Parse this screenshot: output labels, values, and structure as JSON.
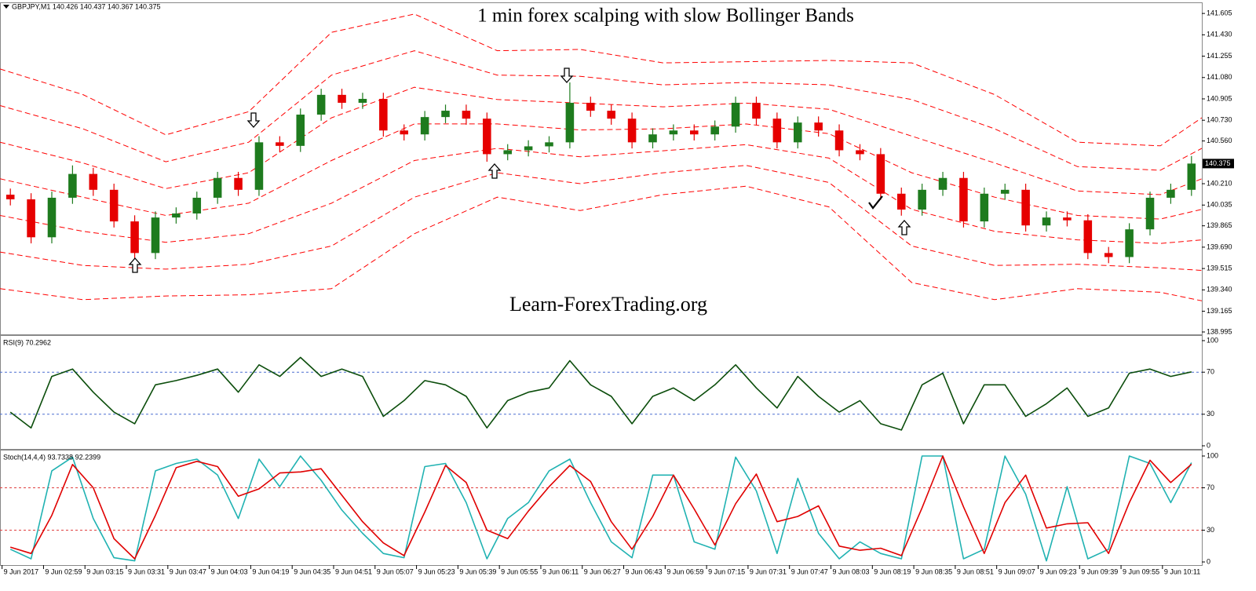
{
  "chart_data": [
    {
      "type": "candlestick",
      "title": "1 min forex scalping with slow Bollinger Bands",
      "watermark": "Learn-ForexTrading.org",
      "header": "GBPJPY,M1 140.426 140.437 140.367 140.375",
      "xlim": [
        0,
        58
      ],
      "ylim": [
        138.982,
        141.683
      ],
      "yticks": [
        141.605,
        {
          "value": 141.43,
          "label": "141.430"
        },
        141.255,
        {
          "value": 141.08,
          "label": "141.080"
        },
        140.905,
        {
          "value": 140.73,
          "label": "140.730"
        },
        {
          "value": 140.56,
          "label": "140.560"
        },
        {
          "value": 140.21,
          "label": "140.210"
        },
        140.035,
        139.865,
        {
          "value": 139.69,
          "label": "139.690"
        },
        139.515,
        {
          "value": 139.34,
          "label": "139.340"
        },
        139.165,
        138.995
      ],
      "last_price": 140.375,
      "up_color": "#1e7b1e",
      "down_color": "#e60000",
      "open": [
        140.12,
        140.082,
        139.771,
        140.095,
        140.29,
        140.16,
        139.901,
        139.642,
        139.933,
        139.966,
        140.095,
        140.257,
        140.16,
        140.549,
        140.52,
        140.776,
        140.938,
        140.873,
        140.905,
        140.646,
        140.614,
        140.756,
        140.808,
        140.743,
        140.452,
        140.484,
        140.516,
        140.549,
        140.873,
        140.808,
        140.743,
        140.549,
        140.614,
        140.646,
        140.614,
        140.678,
        140.873,
        140.743,
        140.549,
        140.711,
        140.646,
        140.484,
        140.452,
        140.128,
        139.998,
        140.16,
        140.257,
        139.901,
        140.128,
        140.16,
        139.868,
        139.933,
        139.91,
        139.642,
        139.609,
        139.836,
        140.095,
        140.16
      ],
      "high": [
        140.17,
        140.132,
        140.145,
        140.36,
        140.34,
        140.21,
        139.951,
        139.983,
        140.016,
        140.145,
        140.307,
        140.307,
        140.599,
        140.599,
        140.826,
        140.988,
        140.988,
        140.955,
        140.955,
        140.696,
        140.806,
        140.858,
        140.858,
        140.793,
        140.534,
        140.566,
        140.599,
        141.04,
        140.923,
        140.858,
        140.793,
        140.664,
        140.696,
        140.696,
        140.728,
        140.923,
        140.923,
        140.793,
        140.761,
        140.761,
        140.696,
        140.534,
        140.502,
        140.178,
        140.21,
        140.307,
        140.307,
        140.178,
        140.21,
        140.21,
        139.983,
        139.983,
        139.96,
        139.692,
        139.886,
        140.145,
        140.21,
        140.437
      ],
      "low": [
        140.032,
        139.721,
        139.721,
        140.045,
        140.11,
        139.851,
        139.52,
        139.592,
        139.883,
        139.916,
        140.045,
        140.11,
        140.11,
        140.47,
        140.47,
        140.726,
        140.823,
        140.823,
        140.596,
        140.564,
        140.564,
        140.706,
        140.693,
        140.39,
        140.402,
        140.434,
        140.466,
        140.499,
        140.758,
        140.693,
        140.499,
        140.499,
        140.564,
        140.564,
        140.564,
        140.628,
        140.693,
        140.499,
        140.499,
        140.596,
        140.434,
        140.402,
        140.078,
        139.948,
        139.948,
        140.11,
        139.851,
        139.851,
        140.078,
        139.818,
        139.818,
        139.86,
        139.592,
        139.559,
        139.559,
        139.786,
        140.045,
        140.11
      ],
      "close": [
        140.082,
        139.771,
        140.095,
        140.29,
        140.16,
        139.901,
        139.642,
        139.933,
        139.966,
        140.095,
        140.257,
        140.16,
        140.549,
        140.52,
        140.776,
        140.938,
        140.873,
        140.905,
        140.646,
        140.614,
        140.756,
        140.808,
        140.743,
        140.452,
        140.484,
        140.516,
        140.549,
        140.873,
        140.808,
        140.743,
        140.549,
        140.614,
        140.646,
        140.614,
        140.678,
        140.873,
        140.743,
        140.549,
        140.711,
        140.646,
        140.484,
        140.452,
        140.128,
        139.998,
        140.16,
        140.257,
        139.901,
        140.128,
        140.16,
        139.868,
        139.933,
        139.91,
        139.642,
        139.609,
        139.836,
        140.095,
        140.16,
        140.375
      ],
      "band_x": [
        0,
        4,
        8,
        12,
        16,
        20,
        24,
        28,
        32,
        36,
        40,
        44,
        48,
        52,
        56,
        58
      ],
      "bands": [
        {
          "color": "#ff0000",
          "values": [
            141.15,
            140.94,
            140.61,
            140.8,
            141.45,
            141.6,
            141.3,
            141.31,
            141.2,
            141.21,
            141.22,
            141.2,
            140.94,
            140.55,
            140.52,
            140.75
          ]
        },
        {
          "color": "#ff0000",
          "values": [
            140.85,
            140.66,
            140.39,
            140.55,
            141.1,
            141.3,
            141.1,
            141.09,
            141.02,
            141.04,
            141.02,
            140.9,
            140.66,
            140.35,
            140.32,
            140.5
          ]
        },
        {
          "color": "#ff0000",
          "values": [
            140.55,
            140.38,
            140.17,
            140.3,
            140.75,
            141.0,
            140.9,
            140.87,
            140.84,
            140.87,
            140.82,
            140.6,
            140.38,
            140.15,
            140.12,
            140.25
          ]
        },
        {
          "color": "#ff0000",
          "values": [
            140.25,
            140.1,
            139.95,
            140.05,
            140.4,
            140.7,
            140.7,
            140.65,
            140.66,
            140.7,
            140.62,
            140.3,
            140.1,
            139.95,
            139.92,
            140.0
          ]
        },
        {
          "color": "#ff0000",
          "values": [
            139.95,
            139.82,
            139.73,
            139.8,
            140.05,
            140.4,
            140.5,
            140.43,
            140.48,
            140.53,
            140.42,
            140.0,
            139.82,
            139.75,
            139.72,
            139.75
          ]
        },
        {
          "color": "#ff0000",
          "values": [
            139.65,
            139.54,
            139.51,
            139.55,
            139.7,
            140.1,
            140.3,
            140.21,
            140.3,
            140.36,
            140.22,
            139.7,
            139.54,
            139.55,
            139.52,
            139.5
          ]
        },
        {
          "color": "#ff0000",
          "values": [
            139.35,
            139.26,
            139.29,
            139.3,
            139.35,
            139.8,
            140.1,
            139.99,
            140.12,
            140.19,
            140.02,
            139.4,
            139.26,
            139.35,
            139.32,
            139.25
          ]
        }
      ]
    },
    {
      "type": "line",
      "label": "RSI(9) 70.2962",
      "xlim": [
        0,
        58
      ],
      "ylim": [
        0,
        100
      ],
      "yticks": [
        0,
        30,
        70,
        100
      ],
      "levels": [
        30,
        70
      ],
      "level_color": "#4a6fd0",
      "series": [
        {
          "color": "#0b4d0b",
          "values": [
            32,
            17,
            66,
            73,
            51,
            32,
            21,
            58,
            62,
            67,
            73,
            51,
            77,
            66,
            84,
            66,
            73,
            66,
            28,
            43,
            62,
            58,
            47,
            17,
            43,
            51,
            55,
            81,
            58,
            47,
            21,
            47,
            55,
            43,
            58,
            77,
            55,
            36,
            66,
            47,
            32,
            43,
            21,
            15,
            58,
            69,
            21,
            58,
            58,
            28,
            40,
            55,
            28,
            36,
            69,
            73,
            66,
            70.3
          ]
        }
      ]
    },
    {
      "type": "line",
      "label": "Stoch(14,4,4) 93.7338 92.2399",
      "xlim": [
        0,
        58
      ],
      "ylim": [
        0,
        100
      ],
      "yticks": [
        0,
        30,
        70,
        100
      ],
      "levels": [
        30,
        70
      ],
      "level_color": "#e04040",
      "xticks": [
        {
          "value": 0.1,
          "label": "9 Jun 2017"
        },
        {
          "value": 2.1,
          "label": "9 Jun 02:59"
        },
        {
          "value": 4.1,
          "label": "9 Jun 03:15"
        },
        {
          "value": 6.1,
          "label": "9 Jun 03:31"
        },
        {
          "value": 8.1,
          "label": "9 Jun 03:47"
        },
        {
          "value": 10.1,
          "label": "9 Jun 04:03"
        },
        {
          "value": 12.1,
          "label": "9 Jun 04:19"
        },
        {
          "value": 14.1,
          "label": "9 Jun 04:35"
        },
        {
          "value": 16.1,
          "label": "9 Jun 04:51"
        },
        {
          "value": 18.1,
          "label": "9 Jun 05:07"
        },
        {
          "value": 20.1,
          "label": "9 Jun 05:23"
        },
        {
          "value": 22.1,
          "label": "9 Jun 05:39"
        },
        {
          "value": 24.1,
          "label": "9 Jun 05:55"
        },
        {
          "value": 26.1,
          "label": "9 Jun 06:11"
        },
        {
          "value": 28.1,
          "label": "9 Jun 06:27"
        },
        {
          "value": 30.1,
          "label": "9 Jun 06:43"
        },
        {
          "value": 32.1,
          "label": "9 Jun 06:59"
        },
        {
          "value": 34.1,
          "label": "9 Jun 07:15"
        },
        {
          "value": 36.1,
          "label": "9 Jun 07:31"
        },
        {
          "value": 38.1,
          "label": "9 Jun 07:47"
        },
        {
          "value": 40.1,
          "label": "9 Jun 08:03"
        },
        {
          "value": 42.1,
          "label": "9 Jun 08:19"
        },
        {
          "value": 44.1,
          "label": "9 Jun 08:35"
        },
        {
          "value": 46.1,
          "label": "9 Jun 08:51"
        },
        {
          "value": 48.1,
          "label": "9 Jun 09:07"
        },
        {
          "value": 50.1,
          "label": "9 Jun 09:23"
        },
        {
          "value": 52.1,
          "label": "9 Jun 09:39"
        },
        {
          "value": 54.1,
          "label": "9 Jun 09:55"
        },
        {
          "value": 56.1,
          "label": "9 Jun 10:11"
        }
      ],
      "series": [
        {
          "color": "#20b2b2",
          "values": [
            12,
            3,
            86,
            99,
            41,
            4,
            1,
            86,
            93,
            97,
            82,
            41,
            97,
            71,
            100,
            77,
            49,
            27,
            8,
            4,
            90,
            93,
            56,
            3,
            41,
            56,
            86,
            97,
            56,
            19,
            4,
            82,
            82,
            19,
            12,
            99,
            67,
            8,
            79,
            27,
            3,
            19,
            8,
            3,
            100,
            100,
            3,
            12,
            100,
            64,
            1,
            71,
            3,
            12,
            100,
            93,
            56,
            93.7
          ]
        },
        {
          "color": "#e00000",
          "values": [
            14,
            8,
            44,
            92,
            70,
            22,
            3,
            44,
            89,
            95,
            90,
            62,
            69,
            84,
            85,
            88,
            63,
            38,
            18,
            6,
            47,
            91,
            75,
            30,
            22,
            48,
            71,
            91,
            76,
            38,
            12,
            43,
            82,
            50,
            16,
            55,
            83,
            38,
            43,
            53,
            15,
            11,
            13,
            6,
            51,
            100,
            52,
            8,
            56,
            82,
            32,
            36,
            37,
            8,
            56,
            96,
            75,
            92.2
          ]
        }
      ]
    }
  ]
}
